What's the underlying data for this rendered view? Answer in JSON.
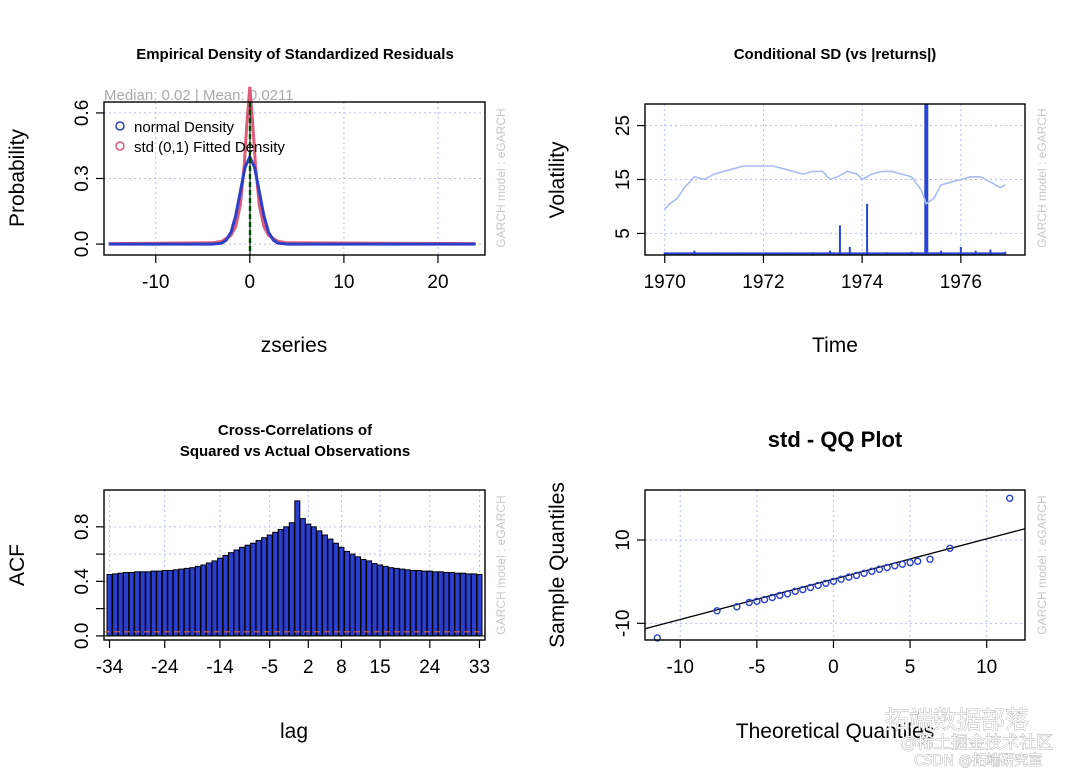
{
  "colors": {
    "normal_line": "#2c3fc8",
    "std_line": "#df5a78",
    "median_line": "#008800",
    "vol_line": "#aabcf0",
    "abs_returns": "#2845d8",
    "bar_fill": "#2a3fd0",
    "grid": "#b4bef0",
    "conf_line": "#e06040",
    "side_text": "#c8c8c8"
  },
  "side_label": "GARCH model : eGARCH",
  "watermark": {
    "line1": "拓端数据部落",
    "line2": "@稀土掘金技术社区",
    "line3": "CSDN @拓端研究室"
  },
  "chart_data": [
    {
      "id": "density",
      "type": "line",
      "title": "Empirical Density of Standardized Residuals",
      "subtitle": "Median:  0.02 | Mean:  0.0211",
      "xlabel": "zseries",
      "ylabel": "Probability",
      "xlim": [
        -15.5,
        25
      ],
      "ylim": [
        -0.05,
        0.65
      ],
      "xticks": [
        -10,
        0,
        10,
        20
      ],
      "xtick_labels": [
        "-10",
        "0",
        "10",
        "20"
      ],
      "yticks": [
        0.0,
        0.3,
        0.6
      ],
      "ytick_labels": [
        "0.0",
        "0.3",
        "0.6"
      ],
      "legend": {
        "position": "top-left",
        "items": [
          "normal Density",
          "std (0,1) Fitted Density"
        ]
      },
      "median": 0.02,
      "mean": 0.0211,
      "series": [
        {
          "name": "normal Density",
          "x": [
            -15,
            -4,
            -3,
            -2.5,
            -2,
            -1.5,
            -1,
            -0.5,
            0,
            0.5,
            1,
            1.5,
            2,
            2.5,
            3,
            4,
            24
          ],
          "y": [
            0,
            0,
            0.004,
            0.018,
            0.054,
            0.13,
            0.242,
            0.352,
            0.399,
            0.352,
            0.242,
            0.13,
            0.054,
            0.018,
            0.004,
            0,
            0
          ]
        },
        {
          "name": "std (0,1) Fitted Density",
          "x": [
            -15,
            -4,
            -3,
            -2,
            -1.5,
            -1,
            -0.6,
            -0.3,
            0,
            0.3,
            0.6,
            1,
            1.5,
            2,
            3,
            4,
            24
          ],
          "y": [
            0.002,
            0.006,
            0.012,
            0.04,
            0.08,
            0.18,
            0.36,
            0.56,
            0.72,
            0.56,
            0.36,
            0.18,
            0.08,
            0.04,
            0.012,
            0.006,
            0.002
          ]
        }
      ]
    },
    {
      "id": "conditional_sd",
      "type": "line",
      "title": "Conditional SD (vs |returns|)",
      "xlabel": "Time",
      "ylabel": "Volatility",
      "xlim": [
        1969.6,
        1977.3
      ],
      "ylim": [
        1,
        29
      ],
      "xticks": [
        1970,
        1972,
        1974,
        1976
      ],
      "xtick_labels": [
        "1970",
        "1972",
        "1974",
        "1976"
      ],
      "yticks": [
        5,
        15,
        25
      ],
      "ytick_labels": [
        "5",
        "15",
        "25"
      ],
      "grid": true,
      "series": [
        {
          "name": "conditional SD",
          "x": [
            1970.0,
            1970.1,
            1970.25,
            1970.4,
            1970.6,
            1970.8,
            1971.0,
            1971.2,
            1971.4,
            1971.6,
            1971.8,
            1972.0,
            1972.2,
            1972.4,
            1972.6,
            1972.8,
            1973.0,
            1973.2,
            1973.35,
            1973.5,
            1973.7,
            1973.9,
            1974.0,
            1974.2,
            1974.4,
            1974.6,
            1974.8,
            1975.0,
            1975.2,
            1975.3,
            1975.45,
            1975.6,
            1975.8,
            1976.0,
            1976.2,
            1976.4,
            1976.6,
            1976.8,
            1976.9
          ],
          "y": [
            9.5,
            10.5,
            11.5,
            13.5,
            15.5,
            15,
            16,
            16.5,
            17,
            17.5,
            17.5,
            17.5,
            17.5,
            17,
            16.5,
            16,
            16.5,
            16.5,
            15,
            15.5,
            16.5,
            16,
            15,
            16,
            16.5,
            16.5,
            16,
            15.5,
            13,
            10.5,
            11.5,
            14,
            14.5,
            15,
            15.5,
            15.5,
            14.5,
            13.5,
            14
          ]
        },
        {
          "name": "|returns|",
          "x": [
            1970.0,
            1970.3,
            1970.6,
            1971.0,
            1971.5,
            1972.0,
            1972.5,
            1973.0,
            1973.35,
            1973.55,
            1973.75,
            1974.1,
            1974.5,
            1975.0,
            1975.3,
            1975.6,
            1976.0,
            1976.3,
            1976.6,
            1976.9
          ],
          "y": [
            1.5,
            1.2,
            1.8,
            1.4,
            1.3,
            1.2,
            1.3,
            1.5,
            1.8,
            6.5,
            2.5,
            10.5,
            1.5,
            1.6,
            29,
            1.8,
            2.5,
            1.8,
            2.0,
            1.6
          ]
        }
      ]
    },
    {
      "id": "ccf",
      "type": "bar",
      "title": "Cross-Correlations of",
      "subtitle": "Squared vs Actual Observations",
      "xlabel": "lag",
      "ylabel": "ACF",
      "xlim": [
        -35,
        34
      ],
      "ylim": [
        -0.03,
        1.07
      ],
      "xticks": [
        -34,
        -24,
        -14,
        -5,
        2,
        8,
        15,
        24,
        33
      ],
      "xtick_labels": [
        "-34",
        "-24",
        "-14",
        "-5",
        "2",
        "8",
        "15",
        "24",
        "33"
      ],
      "yticks": [
        0.0,
        0.2,
        0.4,
        0.6,
        0.8
      ],
      "ytick_labels": [
        "0.0",
        "0.4",
        "0.8"
      ],
      "ytick_label_values": [
        0.0,
        0.4,
        0.8
      ],
      "confidence_level": 0.03,
      "lags_from": -34,
      "values": [
        0.45,
        0.455,
        0.46,
        0.465,
        0.465,
        0.47,
        0.47,
        0.47,
        0.475,
        0.475,
        0.48,
        0.48,
        0.485,
        0.49,
        0.495,
        0.5,
        0.51,
        0.52,
        0.535,
        0.55,
        0.57,
        0.59,
        0.61,
        0.63,
        0.65,
        0.665,
        0.68,
        0.7,
        0.72,
        0.74,
        0.76,
        0.78,
        0.8,
        0.83,
        0.99,
        0.86,
        0.82,
        0.8,
        0.77,
        0.74,
        0.71,
        0.68,
        0.65,
        0.62,
        0.6,
        0.58,
        0.56,
        0.55,
        0.53,
        0.52,
        0.51,
        0.5,
        0.495,
        0.49,
        0.485,
        0.48,
        0.48,
        0.475,
        0.475,
        0.47,
        0.47,
        0.465,
        0.465,
        0.46,
        0.46,
        0.455,
        0.455,
        0.45
      ]
    },
    {
      "id": "qq",
      "type": "scatter",
      "title": "std - QQ Plot",
      "xlabel": "Theoretical Quantiles",
      "ylabel": "Sample Quantiles",
      "xlim": [
        -12.3,
        12.5
      ],
      "ylim": [
        -14,
        22
      ],
      "xticks": [
        -10,
        -5,
        0,
        5,
        10
      ],
      "xtick_labels": [
        "-10",
        "-5",
        "0",
        "5",
        "10"
      ],
      "yticks": [
        -10,
        10
      ],
      "ytick_labels": [
        "-10",
        "10"
      ],
      "reference_line": {
        "x": [
          -12.3,
          12.5
        ],
        "y": [
          -11.3,
          12.7
        ]
      },
      "points": {
        "x": [
          -11.5,
          -7.6,
          -6.3,
          -5.5,
          -5.0,
          -4.5,
          -4.0,
          -3.5,
          -3.0,
          -2.5,
          -2.0,
          -1.5,
          -1.0,
          -0.5,
          0,
          0.5,
          1.0,
          1.5,
          2.0,
          2.5,
          3.0,
          3.5,
          4.0,
          4.5,
          5.0,
          5.5,
          6.3,
          7.6,
          11.5
        ],
        "y": [
          -13.5,
          -7.0,
          -6.0,
          -5.0,
          -4.7,
          -4.3,
          -3.8,
          -3.3,
          -2.9,
          -2.3,
          -1.9,
          -1.4,
          -0.9,
          -0.4,
          0.1,
          0.6,
          1.1,
          1.5,
          2.0,
          2.5,
          3.0,
          3.4,
          3.8,
          4.2,
          4.6,
          4.9,
          5.4,
          8.0,
          20.0
        ]
      }
    }
  ]
}
